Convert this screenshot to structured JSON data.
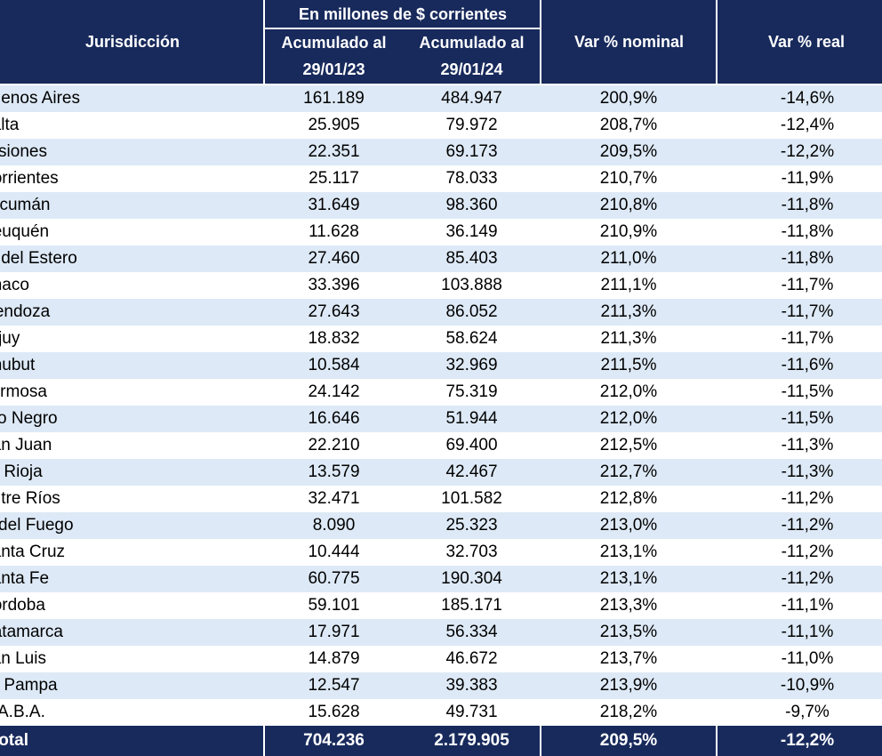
{
  "header": {
    "jurisdiccion": "Jurisdicción",
    "group": "En millones de $ corrientes",
    "acum_a_line1": "Acumulado al",
    "acum_a_line2": "29/01/23",
    "acum_b_line1": "Acumulado al",
    "acum_b_line2": "29/01/24",
    "var_nominal": "Var % nominal",
    "var_real": "Var % real"
  },
  "rows": [
    {
      "jur": "Buenos Aires",
      "a": "161.189",
      "b": "484.947",
      "nom": "200,9%",
      "real": "-14,6%"
    },
    {
      "jur": "Salta",
      "a": "25.905",
      "b": "79.972",
      "nom": "208,7%",
      "real": "-12,4%"
    },
    {
      "jur": "Misiones",
      "a": "22.351",
      "b": "69.173",
      "nom": "209,5%",
      "real": "-12,2%"
    },
    {
      "jur": "Corrientes",
      "a": "25.117",
      "b": "78.033",
      "nom": "210,7%",
      "real": "-11,9%"
    },
    {
      "jur": "Tucumán",
      "a": "31.649",
      "b": "98.360",
      "nom": "210,8%",
      "real": "-11,8%"
    },
    {
      "jur": "Neuquén",
      "a": "11.628",
      "b": "36.149",
      "nom": "210,9%",
      "real": "-11,8%"
    },
    {
      "jur": "S. del Estero",
      "a": "27.460",
      "b": "85.403",
      "nom": "211,0%",
      "real": "-11,8%"
    },
    {
      "jur": "Chaco",
      "a": "33.396",
      "b": "103.888",
      "nom": "211,1%",
      "real": "-11,7%"
    },
    {
      "jur": "Mendoza",
      "a": "27.643",
      "b": "86.052",
      "nom": "211,3%",
      "real": "-11,7%"
    },
    {
      "jur": "Jujuy",
      "a": "18.832",
      "b": "58.624",
      "nom": "211,3%",
      "real": "-11,7%"
    },
    {
      "jur": "Chubut",
      "a": "10.584",
      "b": "32.969",
      "nom": "211,5%",
      "real": "-11,6%"
    },
    {
      "jur": "Formosa",
      "a": "24.142",
      "b": "75.319",
      "nom": "212,0%",
      "real": "-11,5%"
    },
    {
      "jur": "Río Negro",
      "a": "16.646",
      "b": "51.944",
      "nom": "212,0%",
      "real": "-11,5%"
    },
    {
      "jur": "San Juan",
      "a": "22.210",
      "b": "69.400",
      "nom": "212,5%",
      "real": "-11,3%"
    },
    {
      "jur": "La Rioja",
      "a": "13.579",
      "b": "42.467",
      "nom": "212,7%",
      "real": "-11,3%"
    },
    {
      "jur": "Entre Ríos",
      "a": "32.471",
      "b": "101.582",
      "nom": "212,8%",
      "real": "-11,2%"
    },
    {
      "jur": "T. del Fuego",
      "a": "8.090",
      "b": "25.323",
      "nom": "213,0%",
      "real": "-11,2%"
    },
    {
      "jur": "Santa Cruz",
      "a": "10.444",
      "b": "32.703",
      "nom": "213,1%",
      "real": "-11,2%"
    },
    {
      "jur": "Santa Fe",
      "a": "60.775",
      "b": "190.304",
      "nom": "213,1%",
      "real": "-11,2%"
    },
    {
      "jur": "Córdoba",
      "a": "59.101",
      "b": "185.171",
      "nom": "213,3%",
      "real": "-11,1%"
    },
    {
      "jur": "Catamarca",
      "a": "17.971",
      "b": "56.334",
      "nom": "213,5%",
      "real": "-11,1%"
    },
    {
      "jur": "San Luis",
      "a": "14.879",
      "b": "46.672",
      "nom": "213,7%",
      "real": "-11,0%"
    },
    {
      "jur": "La Pampa",
      "a": "12.547",
      "b": "39.383",
      "nom": "213,9%",
      "real": "-10,9%"
    },
    {
      "jur": "C.A.B.A.",
      "a": "15.628",
      "b": "49.731",
      "nom": "218,2%",
      "real": "-9,7%"
    }
  ],
  "total": {
    "jur": "Total",
    "a": "704.236",
    "b": "2.179.905",
    "nom": "209,5%",
    "real": "-12,2%"
  },
  "colors": {
    "header_bg": "#182a5c",
    "stripe": "#dde9f6"
  }
}
